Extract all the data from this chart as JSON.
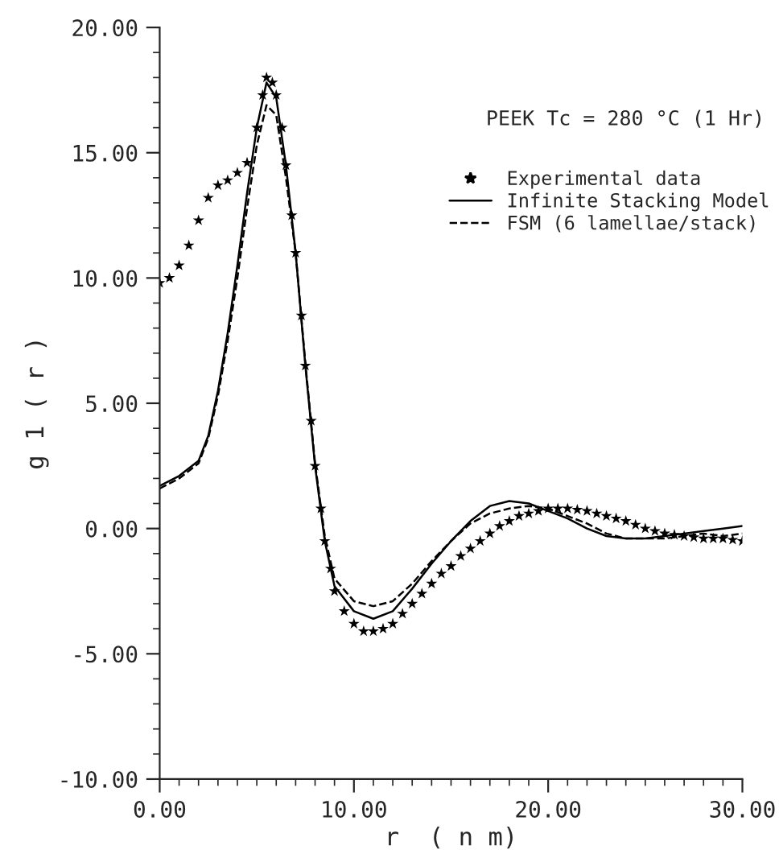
{
  "chart_data": {
    "type": "line",
    "xlabel": "r  ( n m)",
    "ylabel": "g 1 ( r )",
    "annotations": [
      "PEEK Tc = 280 °C (1 Hr)"
    ],
    "xlim": [
      0,
      30
    ],
    "ylim": [
      -10,
      20
    ],
    "xticks": [
      {
        "value": 0,
        "label": "0.00"
      },
      {
        "value": 10,
        "label": "10.00"
      },
      {
        "value": 20,
        "label": "20.00"
      },
      {
        "value": 30,
        "label": "30.00"
      }
    ],
    "yticks": [
      {
        "value": -10,
        "label": "-10.00"
      },
      {
        "value": -5,
        "label": "-5.00"
      },
      {
        "value": 0,
        "label": "0.00"
      },
      {
        "value": 5,
        "label": "5.00"
      },
      {
        "value": 10,
        "label": "10.00"
      },
      {
        "value": 15,
        "label": "15.00"
      },
      {
        "value": 20,
        "label": "20.00"
      }
    ],
    "grid": false,
    "legend": "top right",
    "series": [
      {
        "name": "Experimental data",
        "type": "scatter",
        "marker": "star",
        "color": "#000000",
        "x": [
          0,
          0.5,
          1,
          1.5,
          2,
          2.5,
          3,
          3.5,
          4,
          4.5,
          5,
          5.3,
          5.5,
          5.8,
          6,
          6.3,
          6.5,
          6.8,
          7,
          7.3,
          7.5,
          7.8,
          8,
          8.3,
          8.5,
          8.8,
          9,
          9.5,
          10,
          10.5,
          11,
          11.5,
          12,
          12.5,
          13,
          13.5,
          14,
          14.5,
          15,
          15.5,
          16,
          16.5,
          17,
          17.5,
          18,
          18.5,
          19,
          19.5,
          20,
          20.5,
          21,
          21.5,
          22,
          22.5,
          23,
          23.5,
          24,
          24.5,
          25,
          25.5,
          26,
          26.5,
          27,
          27.5,
          28,
          28.5,
          29,
          29.5,
          30
        ],
        "values": [
          9.8,
          10.0,
          10.5,
          11.3,
          12.3,
          13.2,
          13.7,
          13.9,
          14.2,
          14.6,
          16.0,
          17.3,
          18.0,
          17.8,
          17.3,
          16.0,
          14.5,
          12.5,
          11.0,
          8.5,
          6.5,
          4.3,
          2.5,
          0.8,
          -0.5,
          -1.6,
          -2.5,
          -3.3,
          -3.8,
          -4.1,
          -4.1,
          -4.0,
          -3.8,
          -3.4,
          -3.0,
          -2.6,
          -2.2,
          -1.8,
          -1.5,
          -1.1,
          -0.8,
          -0.5,
          -0.2,
          0.1,
          0.3,
          0.5,
          0.6,
          0.7,
          0.8,
          0.8,
          0.8,
          0.75,
          0.7,
          0.6,
          0.5,
          0.4,
          0.3,
          0.15,
          0.0,
          -0.1,
          -0.2,
          -0.25,
          -0.3,
          -0.35,
          -0.4,
          -0.4,
          -0.4,
          -0.45,
          -0.5
        ]
      },
      {
        "name": "Infinite Stacking Model",
        "line_style": "solid",
        "color": "#000000",
        "x": [
          0,
          1,
          2,
          2.5,
          3,
          3.5,
          4,
          4.5,
          5,
          5.5,
          6,
          6.5,
          7,
          7.5,
          8,
          8.5,
          9,
          10,
          11,
          12,
          13,
          14,
          15,
          16,
          17,
          18,
          19,
          20,
          21,
          22,
          23,
          24,
          25,
          26,
          27,
          28,
          29,
          30
        ],
        "values": [
          1.7,
          2.1,
          2.7,
          3.7,
          5.5,
          7.8,
          10.5,
          13.4,
          16.0,
          17.8,
          17.2,
          14.5,
          11.0,
          6.5,
          2.5,
          -0.5,
          -2.3,
          -3.3,
          -3.6,
          -3.3,
          -2.4,
          -1.4,
          -0.5,
          0.3,
          0.9,
          1.1,
          1.0,
          0.7,
          0.4,
          0.0,
          -0.3,
          -0.4,
          -0.4,
          -0.3,
          -0.2,
          -0.1,
          0.0,
          0.1
        ]
      },
      {
        "name": "FSM (6 lamellae/stack)",
        "line_style": "dashed",
        "color": "#000000",
        "x": [
          0,
          1,
          2,
          2.5,
          3,
          3.5,
          4,
          4.5,
          5,
          5.5,
          6,
          6.5,
          7,
          7.5,
          8,
          8.5,
          9,
          10,
          11,
          12,
          13,
          14,
          15,
          16,
          17,
          18,
          19,
          20,
          21,
          22,
          23,
          24,
          25,
          26,
          27,
          28,
          29,
          30
        ],
        "values": [
          1.6,
          2.0,
          2.6,
          3.6,
          5.3,
          7.5,
          10.0,
          12.8,
          15.3,
          16.9,
          16.5,
          14.0,
          11.0,
          6.6,
          2.6,
          -0.3,
          -2.0,
          -2.9,
          -3.1,
          -2.9,
          -2.2,
          -1.3,
          -0.5,
          0.2,
          0.6,
          0.8,
          0.9,
          0.8,
          0.5,
          0.2,
          -0.2,
          -0.4,
          -0.4,
          -0.4,
          -0.3,
          -0.2,
          -0.3,
          -0.2
        ]
      }
    ]
  }
}
